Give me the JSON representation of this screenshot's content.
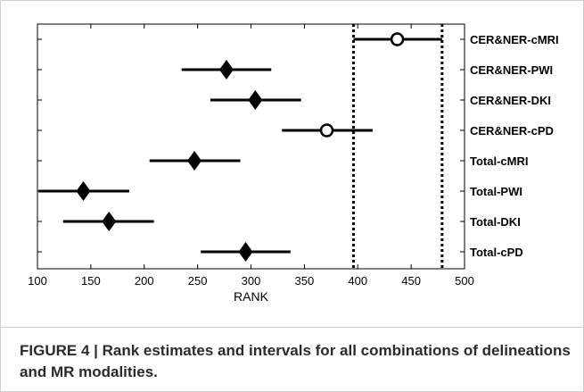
{
  "chart_data": {
    "type": "interval",
    "title": "",
    "xlabel": "RANK",
    "ylabel": "",
    "xlim": [
      100,
      500
    ],
    "x_ticks": [
      100,
      150,
      200,
      250,
      300,
      350,
      400,
      450,
      500
    ],
    "grid": false,
    "rows": [
      {
        "label": "CER&NER-cMRI",
        "estimate": 437,
        "lower": 396,
        "upper": 479,
        "marker": "circle"
      },
      {
        "label": "CER&NER-PWI",
        "estimate": 277,
        "lower": 235,
        "upper": 319,
        "marker": "diamond"
      },
      {
        "label": "CER&NER-DKI",
        "estimate": 304,
        "lower": 262,
        "upper": 347,
        "marker": "diamond"
      },
      {
        "label": "CER&NER-cPD",
        "estimate": 371,
        "lower": 329,
        "upper": 414,
        "marker": "circle"
      },
      {
        "label": "Total-cMRI",
        "estimate": 247,
        "lower": 205,
        "upper": 290,
        "marker": "diamond"
      },
      {
        "label": "Total-PWI",
        "estimate": 143,
        "lower": 101,
        "upper": 186,
        "marker": "diamond"
      },
      {
        "label": "Total-DKI",
        "estimate": 167,
        "lower": 124,
        "upper": 209,
        "marker": "diamond"
      },
      {
        "label": "Total-cPD",
        "estimate": 295,
        "lower": 253,
        "upper": 337,
        "marker": "diamond"
      }
    ],
    "reference_lines": [
      {
        "x": 396,
        "style": "dotted"
      },
      {
        "x": 479,
        "style": "dotted"
      }
    ]
  },
  "caption": {
    "text": "FIGURE 4 | Rank estimates and intervals for all combinations of delineations and MR modalities."
  },
  "colors": {
    "ink": "#000000",
    "caption": "#2b2b2b",
    "frame": "#cfcfcf"
  }
}
